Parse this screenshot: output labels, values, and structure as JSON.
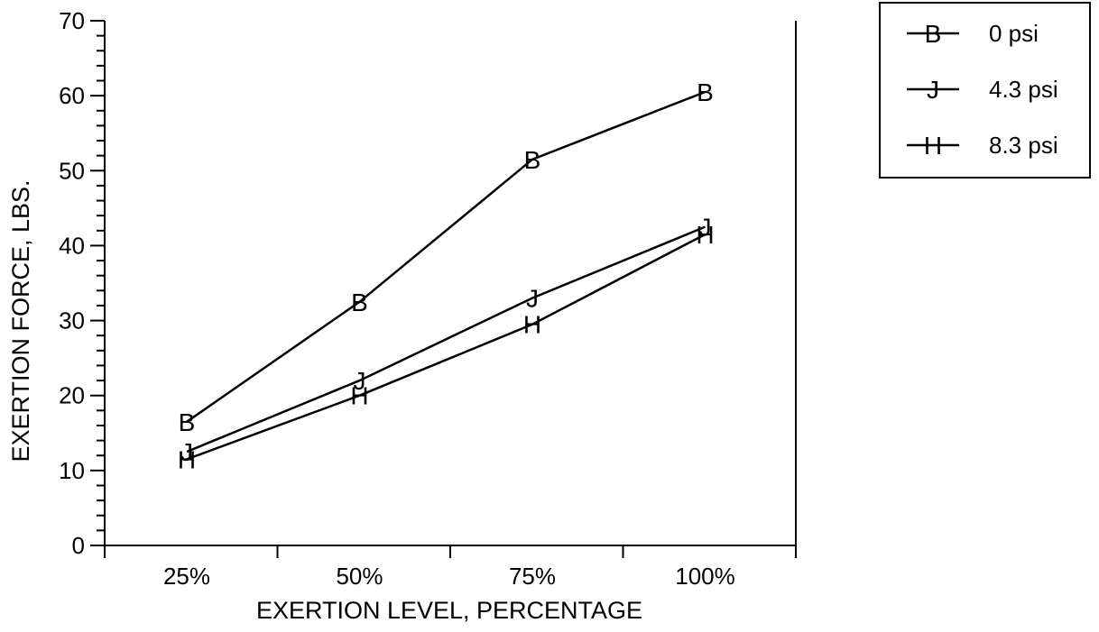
{
  "chart_data": {
    "type": "line",
    "title": "",
    "xlabel": "EXERTION LEVEL, PERCENTAGE",
    "ylabel": "EXERTION FORCE, LBS.",
    "categories": [
      "25%",
      "50%",
      "75%",
      "100%"
    ],
    "ylim": [
      0,
      70
    ],
    "yticks": [
      "0",
      "10",
      "20",
      "30",
      "40",
      "50",
      "60",
      "70"
    ],
    "grid": false,
    "legend_position": "top-right",
    "series": [
      {
        "name": "0 psi",
        "marker": "B",
        "values": [
          16.5,
          32.5,
          51.5,
          60.5
        ]
      },
      {
        "name": "4.3 psi",
        "marker": "J",
        "values": [
          12.5,
          22.0,
          33.0,
          42.5
        ]
      },
      {
        "name": "8.3 psi",
        "marker": "H",
        "values": [
          11.5,
          20.0,
          29.5,
          41.5
        ]
      }
    ],
    "line_color": "#000000"
  }
}
